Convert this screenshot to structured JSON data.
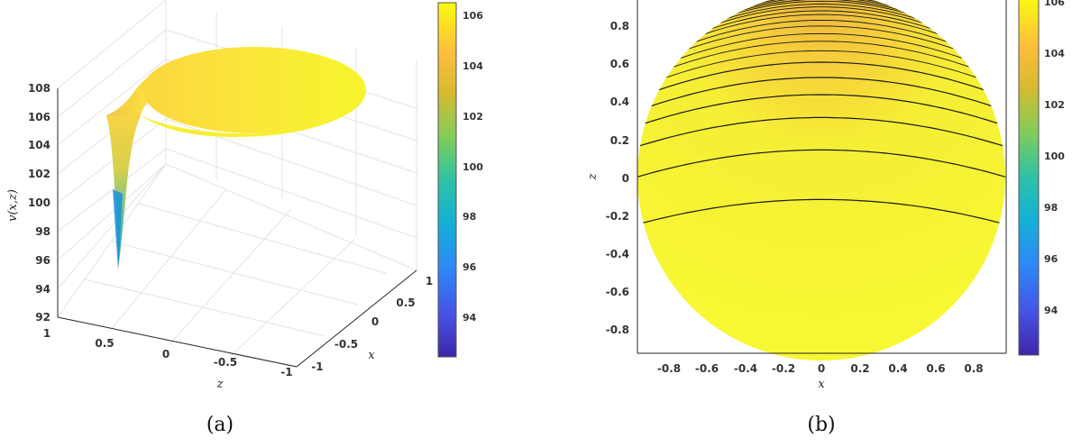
{
  "captions": {
    "a": "(a)",
    "b": "(b)"
  },
  "chart_data": [
    {
      "type": "surface",
      "title": "",
      "xlabel": "x",
      "ylabel": "z",
      "zlabel": "v(x,z)",
      "x_ticks": [
        "-1",
        "-0.5",
        "0",
        "0.5",
        "1"
      ],
      "z_ticks": [
        "1",
        "0.5",
        "0",
        "-0.5",
        "-1"
      ],
      "v_ticks": [
        "92",
        "94",
        "96",
        "98",
        "100",
        "102",
        "104",
        "106",
        "108"
      ],
      "vlim": [
        92,
        108
      ],
      "colorbar": {
        "ticks": [
          "94",
          "96",
          "98",
          "100",
          "102",
          "104",
          "106"
        ],
        "range": [
          92.4,
          106.4
        ],
        "colormap": "parula"
      },
      "colors": {
        "max": "#f9fb0e",
        "mid": "#ffc336",
        "low": "#2fb1b5",
        "min": "#3e26a8"
      },
      "grid": true,
      "min_value": 95,
      "max_value": 106.3
    },
    {
      "type": "contour",
      "title": "",
      "xlabel": "x",
      "ylabel": "z",
      "x_ticks": [
        "-0.8",
        "-0.6",
        "-0.4",
        "-0.2",
        "0",
        "0.2",
        "0.4",
        "0.6",
        "0.8"
      ],
      "y_ticks": [
        "0.8",
        "0.6",
        "0.4",
        "0.2",
        "0",
        "-0.2",
        "-0.4",
        "-0.6",
        "-0.8"
      ],
      "xlim": [
        -0.95,
        0.95
      ],
      "ylim": [
        -0.95,
        0.95
      ],
      "contour_levels_near_top": 22,
      "contour_curve_z_at_center": [
        -0.12,
        0.14,
        0.31,
        0.43,
        0.52,
        0.6,
        0.66,
        0.71,
        0.75,
        0.79,
        0.82,
        0.85,
        0.87,
        0.89,
        0.905,
        0.92,
        0.93,
        0.94,
        0.948,
        0.955,
        0.962,
        0.968
      ],
      "colorbar": {
        "ticks": [
          "94",
          "96",
          "98",
          "100",
          "102",
          "104",
          "106"
        ],
        "range": [
          92.4,
          106.4
        ],
        "colormap": "parula"
      },
      "grid": false
    }
  ]
}
